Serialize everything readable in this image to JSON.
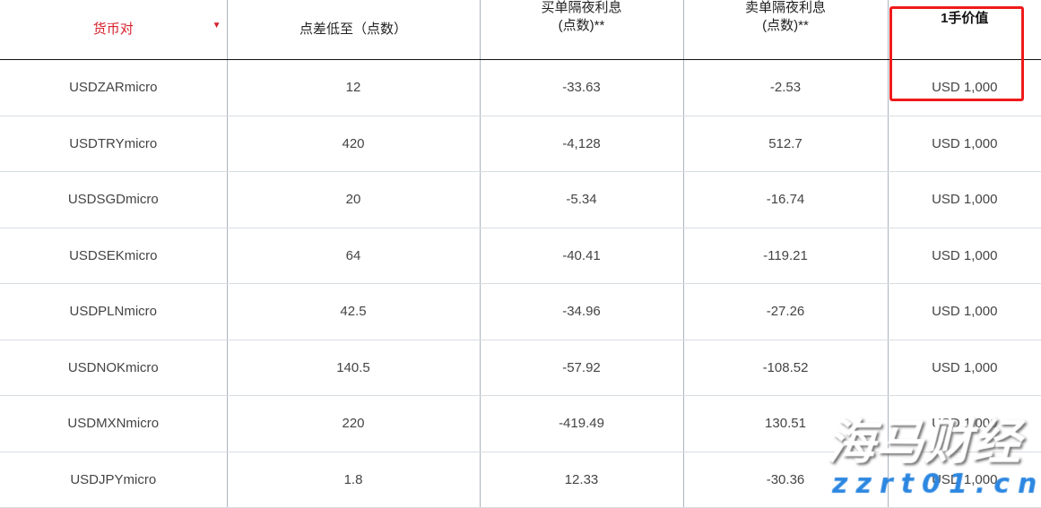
{
  "headers": {
    "pair": "货币对",
    "spread": "点差低至（点数）",
    "long_swap_1": "买单隔夜利息",
    "long_swap_2": "(点数)**",
    "short_swap_1": "卖单隔夜利息",
    "short_swap_2": "(点数)**",
    "lot_value": "1手价值"
  },
  "sort_icon": "triangle-down-icon",
  "rows": [
    {
      "pair": "USDZARmicro",
      "spread": "12",
      "long": "-33.63",
      "short": "-2.53",
      "lot": "USD 1,000"
    },
    {
      "pair": "USDTRYmicro",
      "spread": "420",
      "long": "-4,128",
      "short": "512.7",
      "lot": "USD 1,000"
    },
    {
      "pair": "USDSGDmicro",
      "spread": "20",
      "long": "-5.34",
      "short": "-16.74",
      "lot": "USD 1,000"
    },
    {
      "pair": "USDSEKmicro",
      "spread": "64",
      "long": "-40.41",
      "short": "-119.21",
      "lot": "USD 1,000"
    },
    {
      "pair": "USDPLNmicro",
      "spread": "42.5",
      "long": "-34.96",
      "short": "-27.26",
      "lot": "USD 1,000"
    },
    {
      "pair": "USDNOKmicro",
      "spread": "140.5",
      "long": "-57.92",
      "short": "-108.52",
      "lot": "USD 1,000"
    },
    {
      "pair": "USDMXNmicro",
      "spread": "220",
      "long": "-419.49",
      "short": "130.51",
      "lot": "USD 1,000"
    },
    {
      "pair": "USDJPYmicro",
      "spread": "1.8",
      "long": "12.33",
      "short": "-30.36",
      "lot": "USD 1,000"
    }
  ],
  "watermark": {
    "text": "海马财经",
    "url": "zzrt01.cn"
  },
  "colors": {
    "accent": "#d6202a",
    "highlight": "#f01a1a",
    "watermark_url": "#2b86e0"
  }
}
